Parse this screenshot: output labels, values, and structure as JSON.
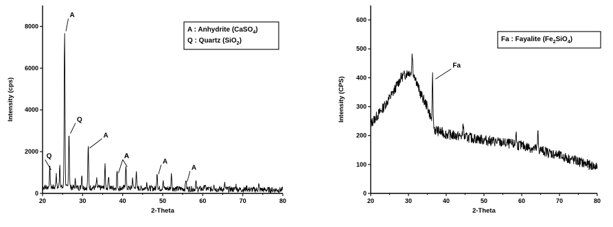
{
  "chart_data": [
    {
      "type": "line",
      "title": "",
      "xlabel": "2-Theta",
      "ylabel": "Intensity (cps)",
      "xlim": [
        20,
        80
      ],
      "ylim": [
        0,
        9000
      ],
      "x_ticks": [
        20,
        30,
        40,
        50,
        60,
        70,
        80
      ],
      "y_ticks": [
        0,
        2000,
        4000,
        6000,
        8000
      ],
      "grid": false,
      "series": [
        {
          "baseline": 300,
          "noise": 140,
          "peaks": [
            {
              "x": 21.8,
              "y": 1250
            },
            {
              "x": 23.4,
              "y": 900
            },
            {
              "x": 24.3,
              "y": 1400
            },
            {
              "x": 25.5,
              "y": 7900
            },
            {
              "x": 26.6,
              "y": 3000
            },
            {
              "x": 28.2,
              "y": 650
            },
            {
              "x": 29.8,
              "y": 900
            },
            {
              "x": 31.4,
              "y": 2300
            },
            {
              "x": 33.5,
              "y": 650
            },
            {
              "x": 35.6,
              "y": 1300
            },
            {
              "x": 36.5,
              "y": 900
            },
            {
              "x": 38.6,
              "y": 1100
            },
            {
              "x": 40.8,
              "y": 1400
            },
            {
              "x": 42.5,
              "y": 750
            },
            {
              "x": 43.4,
              "y": 1000
            },
            {
              "x": 46.0,
              "y": 550
            },
            {
              "x": 48.6,
              "y": 1050
            },
            {
              "x": 50.1,
              "y": 600
            },
            {
              "x": 52.2,
              "y": 950
            },
            {
              "x": 55.8,
              "y": 700
            },
            {
              "x": 58.3,
              "y": 550
            },
            {
              "x": 60.5,
              "y": 450
            },
            {
              "x": 62.8,
              "y": 500
            },
            {
              "x": 65.5,
              "y": 450
            },
            {
              "x": 68.3,
              "y": 400
            },
            {
              "x": 71.0,
              "y": 300
            },
            {
              "x": 74.0,
              "y": 400
            }
          ]
        }
      ],
      "annotations": [
        {
          "label": "A",
          "x": 25.5,
          "y": 7900,
          "tx": 27.8,
          "ty": 8500
        },
        {
          "label": "Q",
          "x": 26.6,
          "y": 3000,
          "tx": 29.6,
          "ty": 3500
        },
        {
          "label": "Q",
          "x": 21.8,
          "y": 1250,
          "tx": 22.0,
          "ty": 1750
        },
        {
          "label": "A",
          "x": 31.4,
          "y": 2300,
          "tx": 36.2,
          "ty": 2750
        },
        {
          "label": "A",
          "x": 38.6,
          "y": 1100,
          "tx": 41.4,
          "ty": 1750
        },
        {
          "label": "A",
          "x": 40.8,
          "y": 1400,
          "tx": 41.4,
          "ty": 1750
        },
        {
          "label": "A",
          "x": 48.6,
          "y": 1050,
          "tx": 51.0,
          "ty": 1500
        },
        {
          "label": "A",
          "x": 55.8,
          "y": 700,
          "tx": 58.2,
          "ty": 1200
        }
      ],
      "legend": {
        "position": "top-right",
        "entries": [
          {
            "text": "A : Anhydrite (CaSO",
            "sub": "4",
            "end": ")"
          },
          {
            "text": "Q : Quartz (SiO",
            "sub": "2",
            "end": ")"
          }
        ]
      }
    },
    {
      "type": "line",
      "title": "",
      "xlabel": "2-Theta",
      "ylabel": "Intensity (CPS)",
      "xlim": [
        20,
        80
      ],
      "ylim": [
        0,
        650
      ],
      "x_ticks": [
        20,
        30,
        40,
        50,
        60,
        70,
        80
      ],
      "y_ticks": [
        0,
        100,
        200,
        300,
        400,
        500,
        600
      ],
      "grid": false,
      "series": [
        {
          "envelope": [
            [
              20,
              240
            ],
            [
              23,
              290
            ],
            [
              26,
              350
            ],
            [
              28,
              400
            ],
            [
              30,
              420
            ],
            [
              31.5,
              415
            ],
            [
              33,
              350
            ],
            [
              35,
              300
            ],
            [
              37,
              220
            ],
            [
              40,
              205
            ],
            [
              45,
              195
            ],
            [
              50,
              185
            ],
            [
              55,
              175
            ],
            [
              60,
              165
            ],
            [
              65,
              150
            ],
            [
              70,
              130
            ],
            [
              75,
              110
            ],
            [
              80,
              90
            ]
          ],
          "noise": 18,
          "peaks": [
            {
              "x": 31.0,
              "y": 490
            },
            {
              "x": 36.4,
              "y": 405
            },
            {
              "x": 44.5,
              "y": 250
            },
            {
              "x": 58.5,
              "y": 215
            },
            {
              "x": 64.3,
              "y": 210
            }
          ]
        }
      ],
      "annotations": [
        {
          "label": "Fa",
          "x": 36.8,
          "y": 405,
          "tx": 42.8,
          "ty": 440
        }
      ],
      "legend": {
        "position": "top-right",
        "entries": [
          {
            "text": "Fa : Fayalite (Fe",
            "sub": "2",
            "mid": "SiO",
            "sub2": "4",
            "end": ")"
          }
        ]
      }
    }
  ]
}
